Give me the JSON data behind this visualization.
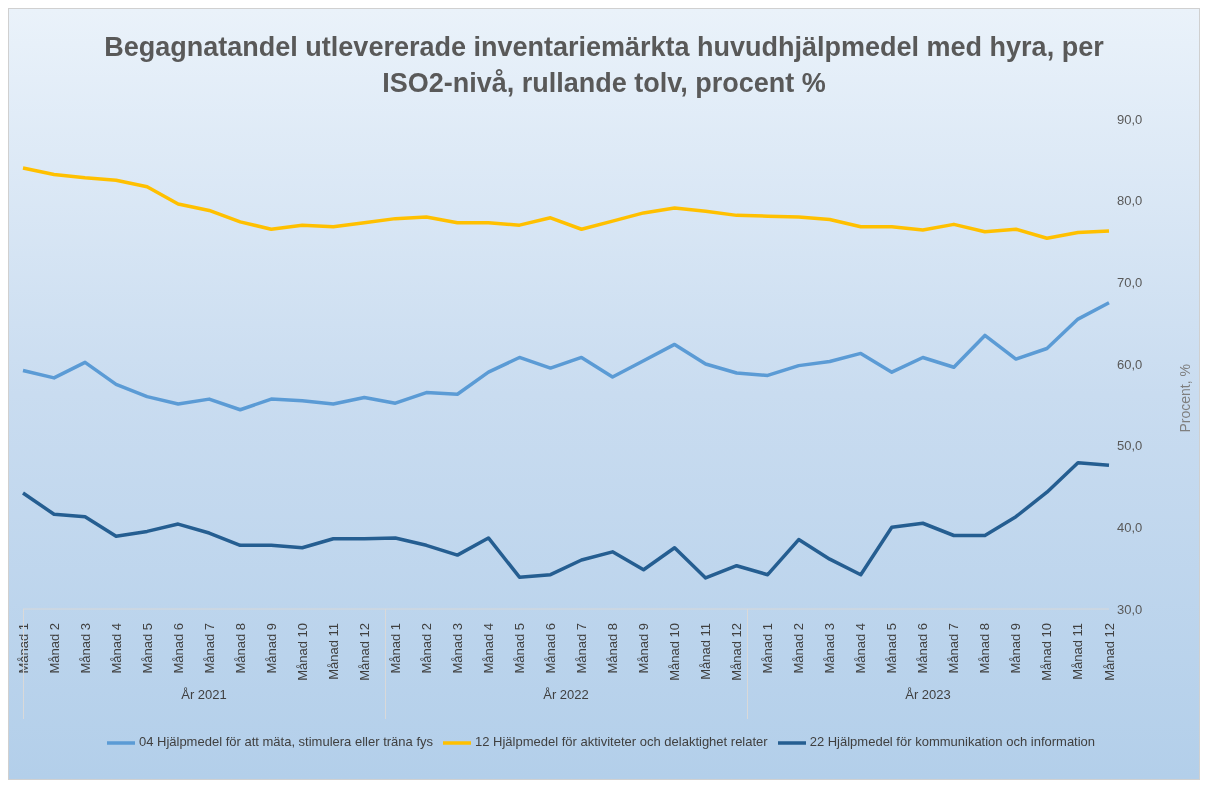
{
  "chart_data": {
    "type": "line",
    "title": "Begagnatandel utlevererade inventariemärkta huvudhjälpmedel med hyra, per ISO2-nivå, rullande tolv, procent %",
    "ylabel": "Procent, %",
    "categories": [
      "Månad 1",
      "Månad 2",
      "Månad 3",
      "Månad 4",
      "Månad 5",
      "Månad 6",
      "Månad 7",
      "Månad 8",
      "Månad 9",
      "Månad 10",
      "Månad 11",
      "Månad 12",
      "Månad 1",
      "Månad 2",
      "Månad 3",
      "Månad 4",
      "Månad 5",
      "Månad 6",
      "Månad 7",
      "Månad 8",
      "Månad 9",
      "Månad 10",
      "Månad 11",
      "Månad 12",
      "Månad 1",
      "Månad 2",
      "Månad 3",
      "Månad 4",
      "Månad 5",
      "Månad 6",
      "Månad 7",
      "Månad 8",
      "Månad 9",
      "Månad 10",
      "Månad 11",
      "Månad 12"
    ],
    "annotations": [
      "År 2021",
      "År 2022",
      "År 2023"
    ],
    "series": [
      {
        "name": "04 Hjälpmedel för att mäta, stimulera eller träna fys",
        "color": "#5b9bd5",
        "values": [
          59.2,
          58.3,
          60.2,
          57.5,
          56.0,
          55.1,
          55.7,
          54.4,
          55.7,
          55.5,
          55.1,
          55.9,
          55.2,
          56.5,
          56.3,
          59.0,
          60.8,
          59.5,
          60.8,
          58.4,
          60.4,
          62.4,
          60.0,
          58.9,
          58.6,
          59.8,
          60.3,
          61.3,
          59.0,
          60.8,
          59.6,
          63.5,
          60.6,
          61.9,
          65.5,
          67.5
        ]
      },
      {
        "name": "12 Hjälpmedel för aktiviteter och delaktighet relater",
        "color": "#ffc000",
        "values": [
          84.0,
          83.2,
          82.8,
          82.5,
          81.7,
          79.6,
          78.8,
          77.4,
          76.5,
          77.0,
          76.8,
          77.3,
          77.8,
          78.0,
          77.3,
          77.3,
          77.0,
          77.9,
          76.5,
          77.5,
          78.5,
          79.1,
          78.7,
          78.2,
          78.1,
          78.0,
          77.7,
          76.8,
          76.8,
          76.4,
          77.1,
          76.2,
          76.5,
          75.4,
          76.1,
          76.3
        ]
      },
      {
        "name": "22 Hjälpmedel för kommunikation och information",
        "color": "#255e91",
        "values": [
          44.2,
          41.6,
          41.3,
          38.9,
          39.5,
          40.4,
          39.3,
          37.8,
          37.8,
          37.5,
          38.6,
          38.6,
          38.7,
          37.8,
          36.6,
          38.7,
          33.9,
          34.2,
          36.0,
          37.0,
          34.8,
          37.5,
          33.8,
          35.3,
          34.2,
          38.5,
          36.1,
          34.2,
          40.0,
          40.5,
          39.0,
          39.0,
          41.3,
          44.3,
          47.9,
          47.6
        ]
      }
    ],
    "ylim": [
      30,
      90
    ],
    "yticks": [
      {
        "value": 30,
        "label": "30,0"
      },
      {
        "value": 40,
        "label": "40,0"
      },
      {
        "value": 50,
        "label": "50,0"
      },
      {
        "value": 60,
        "label": "60,0"
      },
      {
        "value": 70,
        "label": "70,0"
      },
      {
        "value": 80,
        "label": "80,0"
      },
      {
        "value": 90,
        "label": "90,0"
      }
    ],
    "grid": false,
    "legend": "bottom",
    "marker": "none",
    "line_style": "solid"
  }
}
